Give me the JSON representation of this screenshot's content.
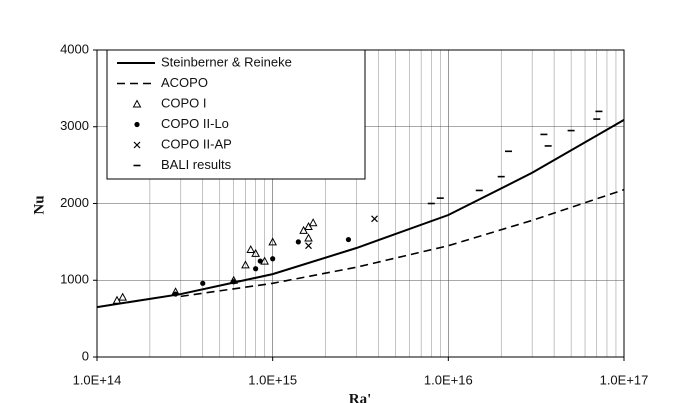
{
  "chart_data": {
    "type": "line",
    "xlabel": "Ra'",
    "ylabel": "Nu",
    "xscale": "log",
    "xlim": [
      100000000000000.0,
      1e+17
    ],
    "ylim": [
      0,
      4000
    ],
    "xticks": [
      {
        "value": 100000000000000.0,
        "label": "1.0E+14"
      },
      {
        "value": 1000000000000000.0,
        "label": "1.0E+15"
      },
      {
        "value": 1e+16,
        "label": "1.0E+16"
      },
      {
        "value": 1e+17,
        "label": "1.0E+17"
      }
    ],
    "xminorticks": [
      200000000000000.0,
      300000000000000.0,
      400000000000000.0,
      500000000000000.0,
      600000000000000.0,
      700000000000000.0,
      800000000000000.0,
      900000000000000.0,
      2000000000000000.0,
      3000000000000000.0,
      4000000000000000.0,
      5000000000000000.0,
      6000000000000000.0,
      7000000000000000.0,
      8000000000000000.0,
      9000000000000000.0,
      2e+16,
      3e+16,
      4e+16,
      5e+16,
      6e+16,
      7e+16,
      8e+16,
      9e+16
    ],
    "yticks": [
      0,
      1000,
      2000,
      3000,
      4000
    ],
    "grid": true,
    "legend": "upper left",
    "series": [
      {
        "name": "Steinberner & Reineke",
        "color": "#000000",
        "style": "solid",
        "x": [
          100000000000000.0,
          300000000000000.0,
          1000000000000000.0,
          3000000000000000.0,
          1e+16,
          3e+16,
          1e+17
        ],
        "values": [
          650,
          820,
          1080,
          1420,
          1850,
          2400,
          3090
        ]
      },
      {
        "name": "ACOPO",
        "color": "#000000",
        "style": "dashed",
        "x": [
          300000000000000.0,
          1000000000000000.0,
          3000000000000000.0,
          1e+16,
          3e+16,
          1e+17
        ],
        "values": [
          790,
          960,
          1170,
          1450,
          1780,
          2180
        ]
      },
      {
        "name": "COPO I",
        "color": "#000000",
        "style": "triangle",
        "x": [
          130000000000000.0,
          140000000000000.0,
          280000000000000.0,
          600000000000000.0,
          700000000000000.0,
          750000000000000.0,
          800000000000000.0,
          900000000000000.0,
          1000000000000000.0,
          1500000000000000.0,
          1600000000000000.0,
          1700000000000000.0,
          1600000000000000.0
        ],
        "values": [
          740,
          780,
          850,
          1000,
          1200,
          1400,
          1350,
          1250,
          1500,
          1650,
          1700,
          1750,
          1550
        ]
      },
      {
        "name": "COPO II-Lo",
        "color": "#000000",
        "style": "dot",
        "x": [
          280000000000000.0,
          400000000000000.0,
          600000000000000.0,
          800000000000000.0,
          850000000000000.0,
          1000000000000000.0,
          1400000000000000.0,
          2700000000000000.0
        ],
        "values": [
          820,
          960,
          980,
          1150,
          1250,
          1280,
          1500,
          1530
        ]
      },
      {
        "name": "COPO II-AP",
        "color": "#000000",
        "style": "cross",
        "x": [
          3800000000000000.0,
          1600000000000000.0
        ],
        "values": [
          1800,
          1450
        ]
      },
      {
        "name": "BALI results",
        "color": "#000000",
        "style": "dash",
        "x": [
          8000000000000000.0,
          9000000000000000.0,
          1.5e+16,
          2e+16,
          2.2e+16,
          3.5e+16,
          3.7e+16,
          5e+16,
          7e+16,
          7.2e+16
        ],
        "values": [
          2000,
          2070,
          2170,
          2350,
          2680,
          2900,
          2750,
          2950,
          3100,
          3200
        ]
      }
    ]
  }
}
